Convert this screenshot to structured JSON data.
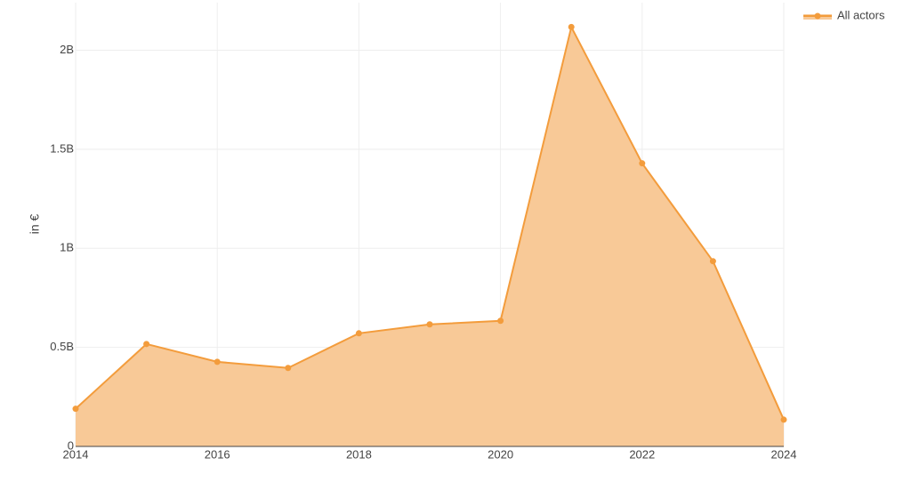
{
  "chart_data": {
    "type": "area",
    "y_label": "in €",
    "x": [
      2014,
      2015,
      2016,
      2017,
      2018,
      2019,
      2020,
      2021,
      2022,
      2023,
      2024
    ],
    "series": [
      {
        "name": "All actors",
        "color": "#f39c3c",
        "fill": "#f8c997",
        "values": [
          190000000,
          517000000,
          427000000,
          396000000,
          571000000,
          616000000,
          634000000,
          2117000000,
          1429000000,
          935000000,
          135000000
        ]
      }
    ],
    "xlim": [
      2014,
      2024
    ],
    "xticks": [
      2014,
      2016,
      2018,
      2020,
      2022,
      2024
    ],
    "ylim": [
      0,
      2240000000
    ],
    "yticks": [
      0,
      {
        "value": 500000000,
        "label": "0.5B"
      },
      {
        "value": 1000000000,
        "label": "1B"
      },
      {
        "value": 1500000000,
        "label": "1.5B"
      },
      {
        "value": 2000000000,
        "label": "2B"
      }
    ],
    "grid": true,
    "legend": "top-right"
  }
}
